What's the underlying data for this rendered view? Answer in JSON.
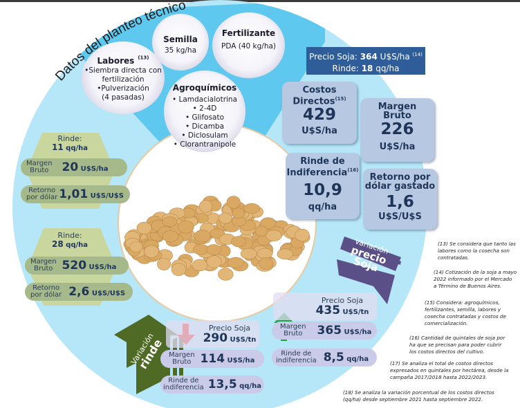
{
  "title": "Datos del planteo técnico",
  "colors": {
    "circle": "#b6e7f8",
    "wedge": "#5fc8ef",
    "price_box": "#2f5d9a",
    "card": "#b7c9e2",
    "hexagon": "#c9d69d",
    "green_pill": "#a6b98a",
    "lavender_pill": "#c9cbe8",
    "rinde_arrow": "#4e6a24",
    "precio_arrow": "#5a4f86",
    "arrow_up": "#1aa64a",
    "arrow_down": "#e0201c"
  },
  "inputs": {
    "labores": {
      "title": "Labores",
      "ref": "(13)",
      "lines": [
        "•Siembra directa con",
        "fertilización",
        "•Pulverización",
        "(4 pasadas)"
      ]
    },
    "semilla": {
      "title": "Semilla",
      "value": "35 kg/ha"
    },
    "fertilizante": {
      "title": "Fertilizante",
      "value": "PDA (40 kg/ha)"
    },
    "agroquimicos": {
      "title": "Agroquímicos",
      "items": [
        "Lamdacialotrina",
        "2-4D",
        "Glifosato",
        "Dicamba",
        "Diclosulam",
        "Clorantranipole"
      ]
    }
  },
  "price_box": {
    "line1_prefix": "Precio Soja: ",
    "line1_value": "364",
    "line1_unit": " U$S/ha ",
    "line1_ref": "(14)",
    "line2_prefix": "Rinde: ",
    "line2_value": "18",
    "line2_unit": " qq/ha"
  },
  "cards": {
    "costos": {
      "label1": "Costos",
      "label2": "Directos",
      "ref": "(15)",
      "value": "429",
      "unit": "U$S/ha"
    },
    "margen": {
      "label1": "Margen",
      "label2": "Bruto",
      "value": "226",
      "unit": "U$S/ha"
    },
    "rinde_indif": {
      "label1": "Rinde de",
      "label2": "Indiferencia",
      "ref": "(16)",
      "value": "10,9",
      "unit": "qq/ha"
    },
    "retorno": {
      "label1": "Retorno por",
      "label2": "dólar gastado",
      "value": "1,6",
      "unit": "U$S/U$S"
    }
  },
  "scenario_low_yield": {
    "rinde_label": "Rinde:",
    "rinde_value": "11",
    "rinde_unit": " qq/ha",
    "margen_label1": "Margen",
    "margen_label2": "Bruto",
    "margen_value": "20",
    "margen_unit": " U$S/ha",
    "retorno_label1": "Retorno",
    "retorno_label2": "por dólar",
    "retorno_value": "1,01",
    "retorno_unit": " U$S/U$S"
  },
  "scenario_high_yield": {
    "rinde_label": "Rinde:",
    "rinde_value": "28",
    "rinde_unit": " qq/ha",
    "margen_label1": "Margen",
    "margen_label2": "Bruto",
    "margen_value": "520",
    "margen_unit": " U$S/ha",
    "retorno_label1": "Retorno",
    "retorno_label2": "por dólar",
    "retorno_value": "2,6",
    "retorno_unit": " U$S/U$S"
  },
  "variacion_rinde": {
    "line1": "Variación",
    "line2": "rinde"
  },
  "variacion_precio": {
    "line1": "Variación",
    "line2": "precio",
    "line3": "Soja"
  },
  "scenario_low_price": {
    "precio_label": "Precio Soja",
    "precio_value": "290",
    "precio_unit": " U$S/tn",
    "margen_label1": "Margen",
    "margen_label2": "Bruto",
    "margen_value": "114",
    "margen_unit": " U$S/ha",
    "indif_label1": "Rinde de",
    "indif_label2": "indiferencia",
    "indif_value": "13,5",
    "indif_unit": " qq/ha"
  },
  "scenario_high_price": {
    "precio_label": "Precio Soja",
    "precio_value": "435",
    "precio_unit": " U$S/tn",
    "margen_label1": "Margen",
    "margen_label2": "Bruto",
    "margen_value": "365",
    "margen_unit": " U$S/ha",
    "indif_label1": "Rinde de",
    "indif_label2": "indiferencia",
    "indif_value": "8,5",
    "indif_unit": " qq/ha"
  },
  "notes": [
    {
      "lines": [
        "(13) Se considera que tanto las",
        "labores como la cosecha son",
        "contratadas."
      ]
    },
    {
      "lines": [
        "(14) Cotización de la soja a mayo",
        "2022 informado por el Mercado",
        "a Término de Buenos Aires."
      ]
    },
    {
      "lines": [
        "(15) Considera: agroquímicos,",
        "fertilizantes, semilla, labores y",
        "cosecha contratadas y costos de",
        "comercialización."
      ]
    },
    {
      "lines": [
        "(16) Cantidad de quintales de soja por",
        "ha que se precisan para poder cubrir",
        "los costos directos del cultivo."
      ]
    },
    {
      "lines": [
        "(17) Se analiza  el total de costos directos",
        "expresados en quintales por hectárea, desde la",
        "campaña 2017/2018 hasta 2022/2023."
      ]
    },
    {
      "lines": [
        "(18) Se analiza  la variación porcentual de los costos directos",
        "(qq/ha) desde septiembre 2021 hasta septiembre 2022."
      ]
    }
  ]
}
